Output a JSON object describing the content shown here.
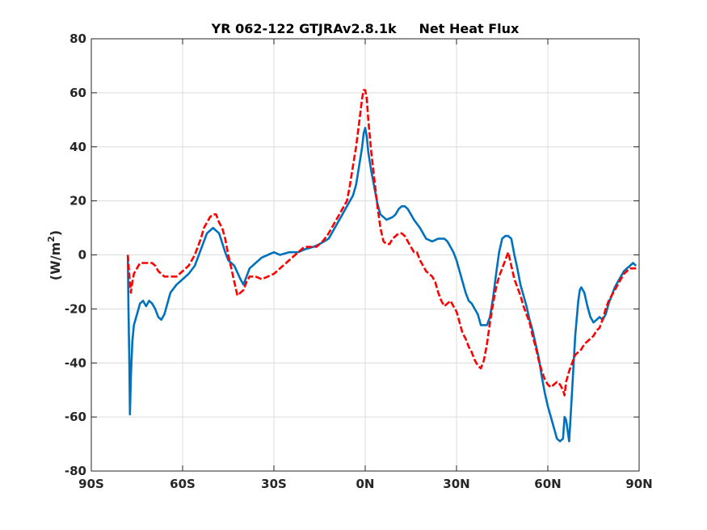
{
  "chart_data": {
    "type": "line",
    "title": "YR 062-122 GTJRAv2.8.1k     Net Heat Flux",
    "xlabel": "",
    "ylabel_main": "(W/m",
    "ylabel_sup": "2",
    "ylabel_close": ")",
    "xlim": [
      -90,
      90
    ],
    "ylim": [
      -80,
      80
    ],
    "xticks": [
      -90,
      -60,
      -30,
      0,
      30,
      60,
      90
    ],
    "xtick_labels": [
      "90S",
      "60S",
      "30S",
      "0N",
      "30N",
      "60N",
      "90N"
    ],
    "yticks": [
      -80,
      -60,
      -40,
      -20,
      0,
      20,
      40,
      60,
      80
    ],
    "ytick_labels": [
      "-80",
      "-60",
      "-40",
      "-20",
      "0",
      "20",
      "40",
      "60",
      "80"
    ],
    "grid": true,
    "series": [
      {
        "style": "solid",
        "color": "#0072BD",
        "points": [
          [
            -78,
            0
          ],
          [
            -77.8,
            -20
          ],
          [
            -77.5,
            -40
          ],
          [
            -77.3,
            -59
          ],
          [
            -77,
            -45
          ],
          [
            -76.5,
            -32
          ],
          [
            -76,
            -26
          ],
          [
            -75,
            -22
          ],
          [
            -74,
            -18
          ],
          [
            -73,
            -17
          ],
          [
            -72,
            -19
          ],
          [
            -71,
            -17
          ],
          [
            -70,
            -18
          ],
          [
            -69,
            -20
          ],
          [
            -68,
            -23
          ],
          [
            -67,
            -24
          ],
          [
            -66,
            -22
          ],
          [
            -65,
            -18
          ],
          [
            -64,
            -14
          ],
          [
            -62,
            -11
          ],
          [
            -60,
            -9
          ],
          [
            -58,
            -7
          ],
          [
            -56,
            -4
          ],
          [
            -54,
            2
          ],
          [
            -52,
            8
          ],
          [
            -50,
            10
          ],
          [
            -48,
            8
          ],
          [
            -46,
            1
          ],
          [
            -45,
            -2
          ],
          [
            -43,
            -4
          ],
          [
            -41,
            -9
          ],
          [
            -40,
            -11
          ],
          [
            -39,
            -8
          ],
          [
            -38,
            -5
          ],
          [
            -36,
            -3
          ],
          [
            -34,
            -1
          ],
          [
            -32,
            0
          ],
          [
            -30,
            1
          ],
          [
            -28,
            0
          ],
          [
            -25,
            1
          ],
          [
            -22,
            1
          ],
          [
            -20,
            2
          ],
          [
            -17,
            3
          ],
          [
            -15,
            4
          ],
          [
            -12,
            6
          ],
          [
            -10,
            10
          ],
          [
            -8,
            14
          ],
          [
            -6,
            18
          ],
          [
            -4,
            22
          ],
          [
            -3,
            26
          ],
          [
            -2,
            33
          ],
          [
            -1,
            40
          ],
          [
            -0.5,
            45
          ],
          [
            0,
            47
          ],
          [
            0.5,
            44
          ],
          [
            1,
            38
          ],
          [
            2,
            31
          ],
          [
            3,
            25
          ],
          [
            4,
            19
          ],
          [
            5,
            15
          ],
          [
            6,
            14
          ],
          [
            7,
            13
          ],
          [
            9,
            14
          ],
          [
            10,
            15
          ],
          [
            11,
            17
          ],
          [
            12,
            18
          ],
          [
            13,
            18
          ],
          [
            14,
            17
          ],
          [
            15,
            15
          ],
          [
            16,
            13
          ],
          [
            18,
            10
          ],
          [
            19,
            8
          ],
          [
            20,
            6
          ],
          [
            22,
            5
          ],
          [
            24,
            6
          ],
          [
            26,
            6
          ],
          [
            27,
            5
          ],
          [
            28,
            3
          ],
          [
            29,
            1
          ],
          [
            30,
            -2
          ],
          [
            31,
            -6
          ],
          [
            32,
            -10
          ],
          [
            33,
            -14
          ],
          [
            34,
            -17
          ],
          [
            35,
            -18
          ],
          [
            36,
            -20
          ],
          [
            37,
            -22
          ],
          [
            38,
            -26
          ],
          [
            39,
            -26
          ],
          [
            40,
            -26
          ],
          [
            41,
            -23
          ],
          [
            42,
            -16
          ],
          [
            43,
            -7
          ],
          [
            44,
            1
          ],
          [
            45,
            6
          ],
          [
            46,
            7
          ],
          [
            47,
            7
          ],
          [
            48,
            6
          ],
          [
            49,
            0
          ],
          [
            50,
            -5
          ],
          [
            51,
            -11
          ],
          [
            52,
            -15
          ],
          [
            53,
            -19
          ],
          [
            54,
            -24
          ],
          [
            55,
            -28
          ],
          [
            56,
            -33
          ],
          [
            57,
            -38
          ],
          [
            58,
            -45
          ],
          [
            59,
            -51
          ],
          [
            60,
            -56
          ],
          [
            61,
            -60
          ],
          [
            62,
            -64
          ],
          [
            63,
            -68
          ],
          [
            64,
            -69
          ],
          [
            65,
            -68
          ],
          [
            65.5,
            -60
          ],
          [
            66,
            -61
          ],
          [
            67,
            -69
          ],
          [
            68,
            -50
          ],
          [
            69,
            -30
          ],
          [
            70,
            -17
          ],
          [
            70.5,
            -13
          ],
          [
            71,
            -12
          ],
          [
            72,
            -14
          ],
          [
            73,
            -19
          ],
          [
            74,
            -23
          ],
          [
            75,
            -25
          ],
          [
            76,
            -24
          ],
          [
            77,
            -23
          ],
          [
            78,
            -24
          ],
          [
            79,
            -22
          ],
          [
            80,
            -18
          ],
          [
            81,
            -15
          ],
          [
            82,
            -12
          ],
          [
            83,
            -10
          ],
          [
            84,
            -8
          ],
          [
            85,
            -6
          ],
          [
            86,
            -5
          ],
          [
            87,
            -4
          ],
          [
            88,
            -3
          ],
          [
            89,
            -4
          ]
        ]
      },
      {
        "style": "dashed",
        "color": "#FF0000",
        "points": [
          [
            -78,
            0
          ],
          [
            -77.5,
            -8
          ],
          [
            -77,
            -14
          ],
          [
            -76.5,
            -10
          ],
          [
            -76,
            -7
          ],
          [
            -75,
            -5
          ],
          [
            -74,
            -3
          ],
          [
            -72,
            -3
          ],
          [
            -70,
            -3
          ],
          [
            -69,
            -4
          ],
          [
            -68,
            -6
          ],
          [
            -67,
            -7
          ],
          [
            -66,
            -8
          ],
          [
            -64,
            -8
          ],
          [
            -62,
            -8
          ],
          [
            -60,
            -6
          ],
          [
            -58,
            -4
          ],
          [
            -56,
            0
          ],
          [
            -54,
            6
          ],
          [
            -53,
            10
          ],
          [
            -52,
            12
          ],
          [
            -51,
            14
          ],
          [
            -50,
            15
          ],
          [
            -49,
            15
          ],
          [
            -48,
            12
          ],
          [
            -47,
            10
          ],
          [
            -46,
            6
          ],
          [
            -45,
            0
          ],
          [
            -44,
            -5
          ],
          [
            -43,
            -10
          ],
          [
            -42,
            -15
          ],
          [
            -41,
            -14
          ],
          [
            -40,
            -13
          ],
          [
            -39,
            -10
          ],
          [
            -38,
            -8
          ],
          [
            -36,
            -8
          ],
          [
            -34,
            -9
          ],
          [
            -32,
            -8
          ],
          [
            -30,
            -7
          ],
          [
            -28,
            -5
          ],
          [
            -26,
            -3
          ],
          [
            -24,
            -1
          ],
          [
            -22,
            1
          ],
          [
            -20,
            3
          ],
          [
            -18,
            3
          ],
          [
            -16,
            3
          ],
          [
            -14,
            5
          ],
          [
            -12,
            8
          ],
          [
            -10,
            12
          ],
          [
            -8,
            16
          ],
          [
            -6,
            20
          ],
          [
            -5,
            26
          ],
          [
            -4,
            33
          ],
          [
            -3,
            40
          ],
          [
            -2,
            49
          ],
          [
            -1,
            58
          ],
          [
            -0.5,
            61
          ],
          [
            0,
            61
          ],
          [
            0.5,
            58
          ],
          [
            1,
            50
          ],
          [
            2,
            38
          ],
          [
            3,
            28
          ],
          [
            4,
            18
          ],
          [
            5,
            10
          ],
          [
            6,
            5
          ],
          [
            7,
            4
          ],
          [
            8,
            4
          ],
          [
            9,
            6
          ],
          [
            10,
            7
          ],
          [
            11,
            8
          ],
          [
            12,
            8
          ],
          [
            13,
            7
          ],
          [
            14,
            5
          ],
          [
            15,
            3
          ],
          [
            16,
            1
          ],
          [
            17,
            1
          ],
          [
            18,
            -2
          ],
          [
            19,
            -4
          ],
          [
            20,
            -6
          ],
          [
            22,
            -8
          ],
          [
            23,
            -10
          ],
          [
            24,
            -14
          ],
          [
            25,
            -17
          ],
          [
            26,
            -19
          ],
          [
            27,
            -18
          ],
          [
            28,
            -17
          ],
          [
            29,
            -19
          ],
          [
            30,
            -21
          ],
          [
            31,
            -25
          ],
          [
            32,
            -29
          ],
          [
            33,
            -31
          ],
          [
            34,
            -34
          ],
          [
            35,
            -36
          ],
          [
            36,
            -39
          ],
          [
            37,
            -41
          ],
          [
            38,
            -42
          ],
          [
            39,
            -39
          ],
          [
            40,
            -33
          ],
          [
            41,
            -25
          ],
          [
            42,
            -18
          ],
          [
            43,
            -12
          ],
          [
            44,
            -8
          ],
          [
            45,
            -5
          ],
          [
            46,
            -2
          ],
          [
            47,
            1
          ],
          [
            48,
            -4
          ],
          [
            49,
            -9
          ],
          [
            50,
            -12
          ],
          [
            51,
            -15
          ],
          [
            52,
            -19
          ],
          [
            53,
            -22
          ],
          [
            54,
            -25
          ],
          [
            55,
            -30
          ],
          [
            56,
            -34
          ],
          [
            57,
            -39
          ],
          [
            58,
            -43
          ],
          [
            59,
            -46
          ],
          [
            60,
            -48
          ],
          [
            61,
            -49
          ],
          [
            62,
            -48
          ],
          [
            63,
            -47
          ],
          [
            64,
            -48
          ],
          [
            65,
            -50
          ],
          [
            65.5,
            -52
          ],
          [
            66,
            -47
          ],
          [
            67,
            -43
          ],
          [
            68,
            -40
          ],
          [
            69,
            -37
          ],
          [
            70,
            -36
          ],
          [
            71,
            -35
          ],
          [
            72,
            -33
          ],
          [
            73,
            -32
          ],
          [
            74,
            -31
          ],
          [
            75,
            -30
          ],
          [
            76,
            -28
          ],
          [
            77,
            -27
          ],
          [
            78,
            -24
          ],
          [
            79,
            -20
          ],
          [
            80,
            -17
          ],
          [
            81,
            -15
          ],
          [
            82,
            -13
          ],
          [
            83,
            -11
          ],
          [
            84,
            -9
          ],
          [
            85,
            -7
          ],
          [
            86,
            -6
          ],
          [
            87,
            -5
          ],
          [
            88,
            -5
          ],
          [
            89,
            -5
          ]
        ]
      }
    ]
  }
}
